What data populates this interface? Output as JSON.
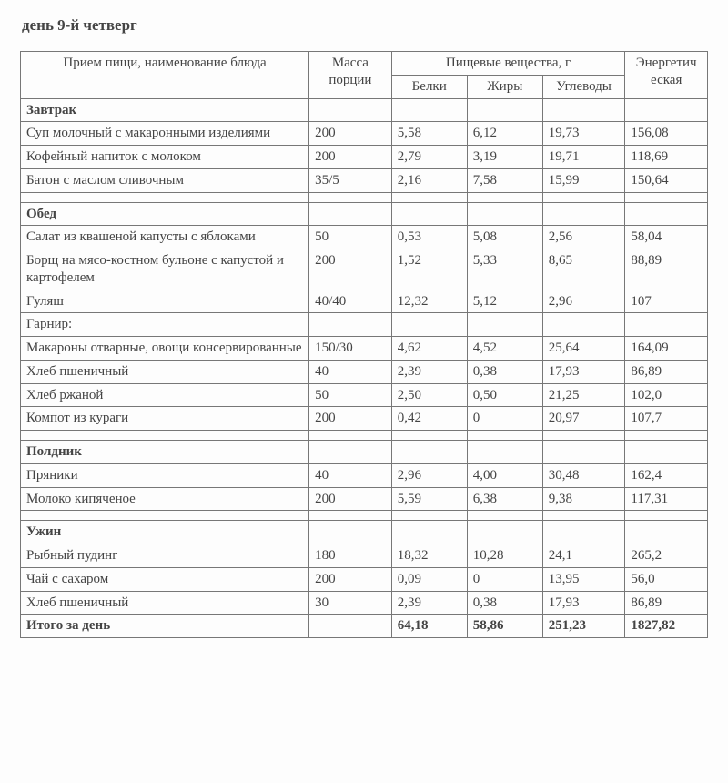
{
  "title": "день 9-й четверг",
  "headers": {
    "name": "Прием пищи, наименование блюда",
    "mass": "Масса порции",
    "nutrients": "Пищевые вещества, г",
    "protein": "Белки",
    "fat": "Жиры",
    "carb": "Углеводы",
    "energy": "Энергетич еская"
  },
  "sections": [
    {
      "title": "Завтрак",
      "rows": [
        {
          "name": "Суп молочный с макаронными изделиями",
          "mass": "200",
          "p": "5,58",
          "f": "6,12",
          "c": "19,73",
          "e": "156,08"
        },
        {
          "name": "Кофейный напиток с молоком",
          "mass": "200",
          "p": "2,79",
          "f": "3,19",
          "c": "19,71",
          "e": "118,69"
        },
        {
          "name": "Батон с маслом сливочным",
          "mass": "35/5",
          "p": "2,16",
          "f": "7,58",
          "c": "15,99",
          "e": "150,64"
        }
      ]
    },
    {
      "title": "Обед",
      "rows": [
        {
          "name": "Салат из квашеной капусты с яблоками",
          "mass": "50",
          "p": "0,53",
          "f": "5,08",
          "c": "2,56",
          "e": "58,04"
        },
        {
          "name": "Борщ на мясо-костном бульоне с капустой и картофелем",
          "mass": "200",
          "p": "1,52",
          "f": "5,33",
          "c": "8,65",
          "e": "88,89"
        },
        {
          "name": "Гуляш",
          "mass": "40/40",
          "p": "12,32",
          "f": "5,12",
          "c": "2,96",
          "e": "107"
        },
        {
          "name": "Гарнир:",
          "mass": "",
          "p": "",
          "f": "",
          "c": "",
          "e": ""
        },
        {
          "name": "Макароны отварные, овощи консервированные",
          "mass": "150/30",
          "p": "4,62",
          "f": "4,52",
          "c": "25,64",
          "e": "164,09"
        },
        {
          "name": "Хлеб пшеничный",
          "mass": "40",
          "p": "2,39",
          "f": "0,38",
          "c": "17,93",
          "e": "86,89"
        },
        {
          "name": "Хлеб ржаной",
          "mass": "50",
          "p": "2,50",
          "f": "0,50",
          "c": "21,25",
          "e": "102,0"
        },
        {
          "name": "Компот из кураги",
          "mass": "200",
          "p": "0,42",
          "f": "0",
          "c": "20,97",
          "e": "107,7"
        }
      ]
    },
    {
      "title": "Полдник",
      "rows": [
        {
          "name": "Пряники",
          "mass": "40",
          "p": "2,96",
          "f": "4,00",
          "c": "30,48",
          "e": "162,4"
        },
        {
          "name": "Молоко кипяченое",
          "mass": "200",
          "p": "5,59",
          "f": "6,38",
          "c": "9,38",
          "e": "117,31"
        }
      ]
    },
    {
      "title": "Ужин",
      "rows": [
        {
          "name": "Рыбный пудинг",
          "mass": "180",
          "p": "18,32",
          "f": "10,28",
          "c": "24,1",
          "e": "265,2"
        },
        {
          "name": "Чай с сахаром",
          "mass": "200",
          "p": "0,09",
          "f": "0",
          "c": "13,95",
          "e": "56,0"
        },
        {
          "name": "Хлеб пшеничный",
          "mass": "30",
          "p": "2,39",
          "f": "0,38",
          "c": "17,93",
          "e": "86,89"
        }
      ]
    }
  ],
  "total": {
    "label": "Итого за день",
    "mass": "",
    "p": "64,18",
    "f": "58,86",
    "c": "251,23",
    "e": "1827,82"
  }
}
